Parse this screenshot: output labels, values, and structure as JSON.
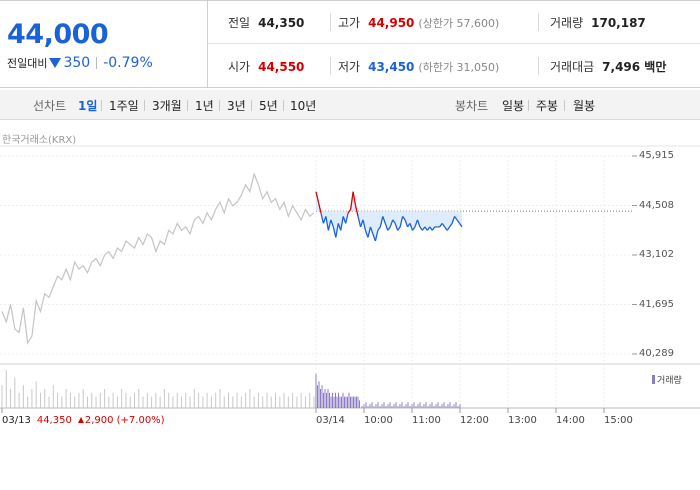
{
  "summary": {
    "price": "44,000",
    "change_label": "전일대비",
    "change": "350",
    "change_rate": "-0.79%"
  },
  "stats": {
    "prev_close": {
      "label": "전일",
      "value": "44,350"
    },
    "high": {
      "label": "고가",
      "value": "44,950",
      "sub": "(상한가 57,600)"
    },
    "volume": {
      "label": "거래량",
      "value": "170,187"
    },
    "open": {
      "label": "시가",
      "value": "44,550"
    },
    "low": {
      "label": "저가",
      "value": "43,450",
      "sub": "(하한가 31,050)"
    },
    "amount": {
      "label": "거래대금",
      "value": "7,496 백만"
    }
  },
  "line_chart_tabs": {
    "label": "선차트",
    "items": [
      "1일",
      "1주일",
      "3개월",
      "1년",
      "3년",
      "5년",
      "10년"
    ],
    "active": "1일"
  },
  "candle_chart_tabs": {
    "label": "봉차트",
    "items": [
      "일봉",
      "주봉",
      "월봉"
    ]
  },
  "chart_source": "한국거래소(KRX)",
  "volume_legend": "거래량",
  "prev_day_info": {
    "date": "03/13",
    "price": "44,350",
    "change": "2,900 (+7.00%)"
  },
  "colors": {
    "up": "#d40000",
    "down": "#1a62d8",
    "prev_day_line": "#c4c4c4",
    "fill": "#d6e7fb"
  },
  "chart_data": {
    "type": "line",
    "ylim": [
      40289,
      45915
    ],
    "y_ticks": [
      45915,
      44508,
      43102,
      41695,
      40289
    ],
    "x_ticks": [
      "03/13",
      "03/14",
      "10:00",
      "11:00",
      "12:00",
      "13:00",
      "14:00",
      "15:00"
    ],
    "reference_price": 44350,
    "series": [
      {
        "values": [
          41500,
          41200,
          41700,
          41000,
          40900,
          41600,
          40600,
          40800,
          41800,
          41500,
          42000,
          41900,
          42200,
          42500,
          42400,
          42700,
          42400,
          42900,
          42700,
          42800,
          42600,
          42900,
          43000,
          42800,
          43100,
          43200,
          43000,
          43300,
          43200,
          43500,
          43400,
          43300,
          43600,
          43400,
          43700,
          43600,
          43200,
          43500,
          43400,
          43800,
          43700,
          44000,
          43800,
          43900,
          43700,
          44100,
          44200,
          44000,
          44300,
          44100,
          44400,
          44600,
          44300,
          44700,
          44500,
          44600,
          44800,
          45100,
          44900,
          45400,
          45100,
          44700,
          44900,
          44600,
          44700,
          44400,
          44600,
          44200,
          44500,
          44300,
          44100,
          44400,
          44200,
          44300
        ]
      },
      {
        "values": [
          44900,
          44600,
          44300,
          44000,
          44200,
          43800,
          44100,
          43900,
          43600,
          44000,
          43800,
          44200,
          44000,
          44300,
          44400,
          44900,
          44500,
          44200,
          43900,
          44100,
          43800,
          43600,
          43900,
          43700,
          43500,
          43800,
          43900,
          44200,
          44000,
          43800,
          43900,
          44100,
          44000,
          43800,
          43900,
          44200,
          44100,
          43900,
          44000,
          43800,
          43900,
          44100,
          43900,
          43800,
          43900,
          43800,
          43900,
          43800,
          43900,
          43900,
          43900,
          44000,
          43900,
          43800,
          43900,
          44000,
          44200,
          44100,
          44000,
          43900
        ]
      }
    ],
    "volume": [
      6,
      10,
      5,
      8,
      4,
      6,
      3,
      5,
      7,
      4,
      5,
      3,
      6,
      4,
      3,
      5,
      4,
      3,
      4,
      5,
      3,
      4,
      3,
      4,
      5,
      3,
      4,
      3,
      5,
      4,
      3,
      4,
      5,
      3,
      4,
      3,
      4,
      3,
      5,
      4,
      3,
      4,
      3,
      4,
      3,
      5,
      4,
      3,
      4,
      3,
      4,
      5,
      3,
      4,
      3,
      4,
      3,
      4,
      5,
      3,
      4,
      3,
      4,
      3,
      4,
      3,
      4,
      3,
      4,
      3,
      4,
      3,
      4,
      3
    ]
  }
}
